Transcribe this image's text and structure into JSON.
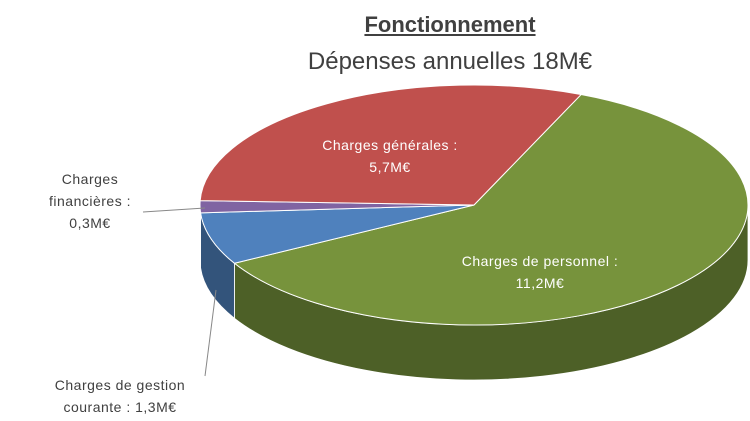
{
  "chart_data": {
    "type": "pie3d",
    "title": "Fonctionnement",
    "subtitle": "Dépenses annuelles 18M€",
    "categories": [
      "Charges de personnel :",
      "Charges de gestion courante :",
      "Charges financières :",
      "Charges générales :"
    ],
    "values": [
      11.2,
      1.3,
      0.3,
      5.7
    ],
    "value_labels": [
      "11,2M€",
      "1,3M€",
      "0,3M€",
      "5,7M€"
    ],
    "colors": [
      "#77933c",
      "#4f81bd",
      "#8064a2",
      "#c0504d"
    ]
  }
}
